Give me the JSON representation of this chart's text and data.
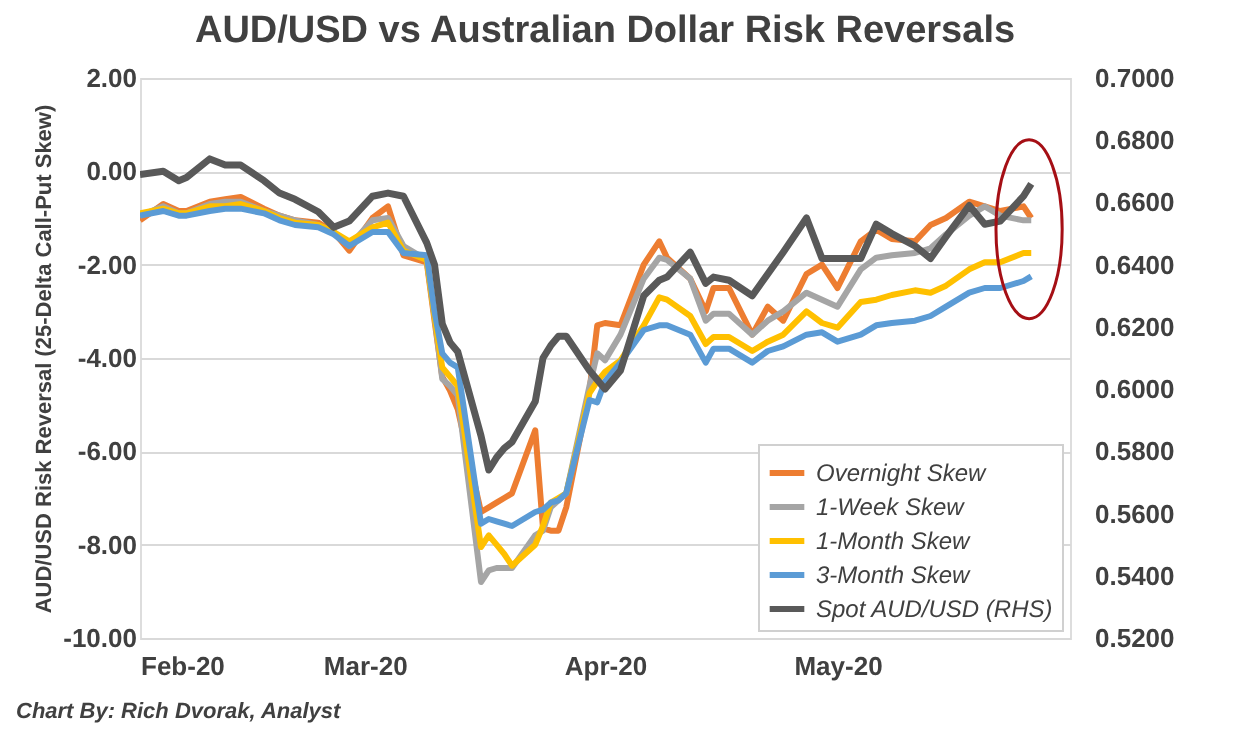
{
  "chart_data": {
    "type": "line",
    "title": "AUD/USD vs Australian Dollar Risk Reversals",
    "ylabel": "AUD/USD Risk Reversal (25-Delta Call-Put Skew)",
    "annotations": [
      "Chart By: Rich Dvorak, Analyst"
    ],
    "x": [
      "2020-02-01",
      "2020-02-04",
      "2020-02-06",
      "2020-02-07",
      "2020-02-10",
      "2020-02-12",
      "2020-02-14",
      "2020-02-17",
      "2020-02-19",
      "2020-02-21",
      "2020-02-24",
      "2020-02-26",
      "2020-02-28",
      "2020-03-02",
      "2020-03-04",
      "2020-03-06",
      "2020-03-09",
      "2020-03-10",
      "2020-03-11",
      "2020-03-12",
      "2020-03-13",
      "2020-03-16",
      "2020-03-17",
      "2020-03-18",
      "2020-03-19",
      "2020-03-20",
      "2020-03-23",
      "2020-03-24",
      "2020-03-25",
      "2020-03-26",
      "2020-03-27",
      "2020-03-30",
      "2020-03-31",
      "2020-04-01",
      "2020-04-03",
      "2020-04-06",
      "2020-04-08",
      "2020-04-09",
      "2020-04-12",
      "2020-04-14",
      "2020-04-15",
      "2020-04-17",
      "2020-04-20",
      "2020-04-22",
      "2020-04-24",
      "2020-04-27",
      "2020-04-29",
      "2020-05-01",
      "2020-05-04",
      "2020-05-06",
      "2020-05-08",
      "2020-05-11",
      "2020-05-13",
      "2020-05-15",
      "2020-05-18",
      "2020-05-20",
      "2020-05-22",
      "2020-05-25",
      "2020-05-26"
    ],
    "series": [
      {
        "name": "Overnight Skew",
        "color": "#ed7d31",
        "values": [
          -1.05,
          -0.7,
          -0.85,
          -0.85,
          -0.65,
          -0.6,
          -0.55,
          -0.8,
          -0.95,
          -1.05,
          -1.1,
          -1.3,
          -1.7,
          -1.0,
          -0.75,
          -1.8,
          -1.95,
          -3.2,
          -4.4,
          -4.7,
          -5.1,
          -7.3,
          -7.2,
          -7.1,
          -7.0,
          -6.9,
          -5.55,
          -7.65,
          -7.7,
          -7.7,
          -7.2,
          -4.7,
          -3.3,
          -3.25,
          -3.3,
          -2.0,
          -1.5,
          -1.85,
          -2.3,
          -3.0,
          -2.5,
          -2.5,
          -3.5,
          -2.9,
          -3.2,
          -2.2,
          -2.0,
          -2.5,
          -1.5,
          -1.25,
          -1.45,
          -1.5,
          -1.15,
          -1.0,
          -0.65,
          -0.75,
          -0.85,
          -0.75,
          -1.0
        ]
      },
      {
        "name": "1-Week Skew",
        "color": "#a5a5a5",
        "values": [
          -0.95,
          -0.75,
          -0.9,
          -0.9,
          -0.7,
          -0.65,
          -0.65,
          -0.85,
          -0.95,
          -1.05,
          -1.15,
          -1.3,
          -1.6,
          -1.05,
          -1.0,
          -1.6,
          -1.9,
          -3.1,
          -4.45,
          -4.6,
          -4.8,
          -8.8,
          -8.55,
          -8.5,
          -8.5,
          -8.5,
          -7.8,
          -7.7,
          -7.2,
          -7.05,
          -6.9,
          -4.6,
          -3.9,
          -4.05,
          -3.5,
          -2.3,
          -1.85,
          -1.9,
          -2.3,
          -3.2,
          -3.05,
          -3.05,
          -3.5,
          -3.2,
          -3.0,
          -2.6,
          -2.75,
          -2.9,
          -2.1,
          -1.85,
          -1.8,
          -1.75,
          -1.65,
          -1.35,
          -0.95,
          -0.75,
          -0.95,
          -1.05,
          -1.05
        ]
      },
      {
        "name": "1-Month Skew",
        "color": "#ffc000",
        "values": [
          -0.9,
          -0.8,
          -0.9,
          -0.9,
          -0.75,
          -0.75,
          -0.7,
          -0.85,
          -1.0,
          -1.1,
          -1.15,
          -1.3,
          -1.5,
          -1.2,
          -1.1,
          -1.7,
          -1.9,
          -3.1,
          -4.2,
          -4.4,
          -4.6,
          -8.05,
          -7.8,
          -8.0,
          -8.2,
          -8.45,
          -8.0,
          -7.6,
          -7.1,
          -7.0,
          -6.9,
          -4.75,
          -4.5,
          -4.3,
          -4.05,
          -3.3,
          -2.7,
          -2.75,
          -3.1,
          -3.7,
          -3.55,
          -3.55,
          -3.85,
          -3.65,
          -3.5,
          -3.0,
          -3.25,
          -3.35,
          -2.8,
          -2.75,
          -2.65,
          -2.55,
          -2.6,
          -2.45,
          -2.1,
          -1.95,
          -1.95,
          -1.75,
          -1.75
        ]
      },
      {
        "name": "3-Month Skew",
        "color": "#5b9bd5",
        "values": [
          -0.95,
          -0.85,
          -0.95,
          -0.95,
          -0.85,
          -0.8,
          -0.8,
          -0.9,
          -1.05,
          -1.15,
          -1.2,
          -1.35,
          -1.6,
          -1.3,
          -1.3,
          -1.75,
          -1.8,
          -3.0,
          -3.9,
          -4.1,
          -4.2,
          -7.55,
          -7.45,
          -7.5,
          -7.55,
          -7.6,
          -7.3,
          -7.25,
          -7.1,
          -7.05,
          -6.9,
          -4.9,
          -4.95,
          -4.5,
          -4.1,
          -3.4,
          -3.3,
          -3.3,
          -3.5,
          -4.1,
          -3.8,
          -3.8,
          -4.1,
          -3.85,
          -3.75,
          -3.5,
          -3.45,
          -3.65,
          -3.5,
          -3.3,
          -3.25,
          -3.2,
          -3.1,
          -2.9,
          -2.6,
          -2.5,
          -2.5,
          -2.35,
          -2.25
        ]
      },
      {
        "name": "Spot AUD/USD (RHS)",
        "color": "#595959",
        "axis": "y2",
        "values": [
          0.669,
          0.67,
          0.667,
          0.668,
          0.674,
          0.672,
          0.672,
          0.667,
          0.663,
          0.661,
          0.657,
          0.652,
          0.654,
          0.662,
          0.663,
          0.662,
          0.647,
          0.64,
          0.621,
          0.615,
          0.612,
          0.585,
          0.574,
          0.578,
          0.581,
          0.583,
          0.596,
          0.61,
          0.614,
          0.617,
          0.617,
          0.606,
          0.603,
          0.6,
          0.606,
          0.63,
          0.635,
          0.636,
          0.644,
          0.634,
          0.636,
          0.635,
          0.63,
          0.637,
          0.644,
          0.655,
          0.642,
          0.642,
          0.642,
          0.653,
          0.65,
          0.646,
          0.642,
          0.649,
          0.659,
          0.653,
          0.654,
          0.662,
          0.666
        ]
      }
    ],
    "xlim": [
      "2020-02-01",
      "2020-05-31"
    ],
    "xticks": [
      {
        "value": "2020-02-01",
        "label": "Feb-20"
      },
      {
        "value": "2020-03-01",
        "label": "Mar-20"
      },
      {
        "value": "2020-04-01",
        "label": "Apr-20"
      },
      {
        "value": "2020-05-01",
        "label": "May-20"
      }
    ],
    "ylim": [
      -10,
      2
    ],
    "yticks": [
      {
        "value": -10,
        "label": "-10.00"
      },
      {
        "value": -8,
        "label": "-8.00"
      },
      {
        "value": -6,
        "label": "-6.00"
      },
      {
        "value": -4,
        "label": "-4.00"
      },
      {
        "value": -2,
        "label": "-2.00"
      },
      {
        "value": 0,
        "label": "0.00"
      },
      {
        "value": 2,
        "label": "2.00"
      }
    ],
    "y2lim": [
      0.52,
      0.7
    ],
    "y2ticks": [
      {
        "value": 0.52,
        "label": "0.5200"
      },
      {
        "value": 0.54,
        "label": "0.5400"
      },
      {
        "value": 0.56,
        "label": "0.5600"
      },
      {
        "value": 0.58,
        "label": "0.5800"
      },
      {
        "value": 0.6,
        "label": "0.6000"
      },
      {
        "value": 0.62,
        "label": "0.6200"
      },
      {
        "value": 0.64,
        "label": "0.6400"
      },
      {
        "value": 0.66,
        "label": "0.6600"
      },
      {
        "value": 0.68,
        "label": "0.6800"
      },
      {
        "value": 0.7,
        "label": "0.7000"
      }
    ],
    "grid": "y",
    "legend": "bottom right"
  }
}
